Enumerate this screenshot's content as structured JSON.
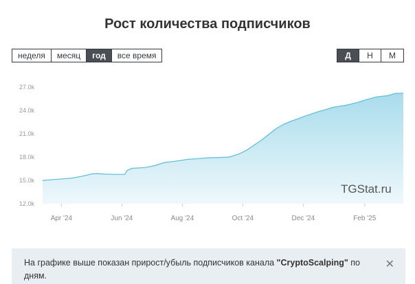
{
  "title": "Рост количества подписчиков",
  "range_buttons": [
    {
      "label": "неделя",
      "active": false
    },
    {
      "label": "месяц",
      "active": false
    },
    {
      "label": "год",
      "active": true
    },
    {
      "label": "все время",
      "active": false
    }
  ],
  "granularity_buttons": [
    {
      "label": "Д",
      "active": true
    },
    {
      "label": "Н",
      "active": false
    },
    {
      "label": "М",
      "active": false
    }
  ],
  "watermark": "TGStat.ru",
  "info": {
    "prefix": "На графике выше показан прирост/убыль подписчиков канала ",
    "channel": "\"CryptoScalping\"",
    "suffix": " по дням.",
    "close_icon": "close-icon"
  },
  "colors": {
    "line": "#5bbcd8",
    "area_top": "#a9dcec",
    "area_bottom": "#eef8fc",
    "active_button": "#4a4f55"
  },
  "chart_data": {
    "type": "area",
    "title": "Рост количества подписчиков",
    "xlabel": "",
    "ylabel": "",
    "x_ticks": [
      "Apr '24",
      "Jun '24",
      "Aug '24",
      "Oct '24",
      "Dec '24",
      "Feb '25"
    ],
    "y_ticks": [
      "12.0k",
      "15.0k",
      "18.0k",
      "21.0k",
      "24.0k",
      "27.0k"
    ],
    "ylim": [
      12000,
      27000
    ],
    "xlim": [
      "2024-03-13",
      "2025-03-12"
    ],
    "grid": false,
    "series": [
      {
        "x": [
          "2024-03-13",
          "2024-03-28",
          "2024-04-12",
          "2024-04-22",
          "2024-05-02",
          "2024-05-08",
          "2024-05-16",
          "2024-05-26",
          "2024-06-04",
          "2024-06-06",
          "2024-06-11",
          "2024-06-24",
          "2024-07-04",
          "2024-07-14",
          "2024-07-24",
          "2024-08-06",
          "2024-08-16",
          "2024-08-26",
          "2024-09-06",
          "2024-09-17",
          "2024-09-27",
          "2024-10-05",
          "2024-10-12",
          "2024-10-20",
          "2024-10-28",
          "2024-11-04",
          "2024-11-11",
          "2024-11-18",
          "2024-11-25",
          "2024-12-01",
          "2024-12-08",
          "2024-12-15",
          "2024-12-23",
          "2024-12-31",
          "2025-01-07",
          "2025-01-14",
          "2025-01-24",
          "2025-02-03",
          "2025-02-13",
          "2025-02-24",
          "2025-03-04",
          "2025-03-12"
        ],
        "values": [
          15000,
          15150,
          15300,
          15550,
          15850,
          15870,
          15800,
          15780,
          15780,
          16250,
          16550,
          16650,
          16900,
          17300,
          17450,
          17700,
          17800,
          17900,
          17950,
          18000,
          18400,
          18900,
          19500,
          20200,
          21000,
          21700,
          22200,
          22600,
          22900,
          23200,
          23500,
          23800,
          24100,
          24400,
          24550,
          24700,
          25000,
          25400,
          25750,
          25900,
          26200,
          26220
        ]
      }
    ]
  }
}
